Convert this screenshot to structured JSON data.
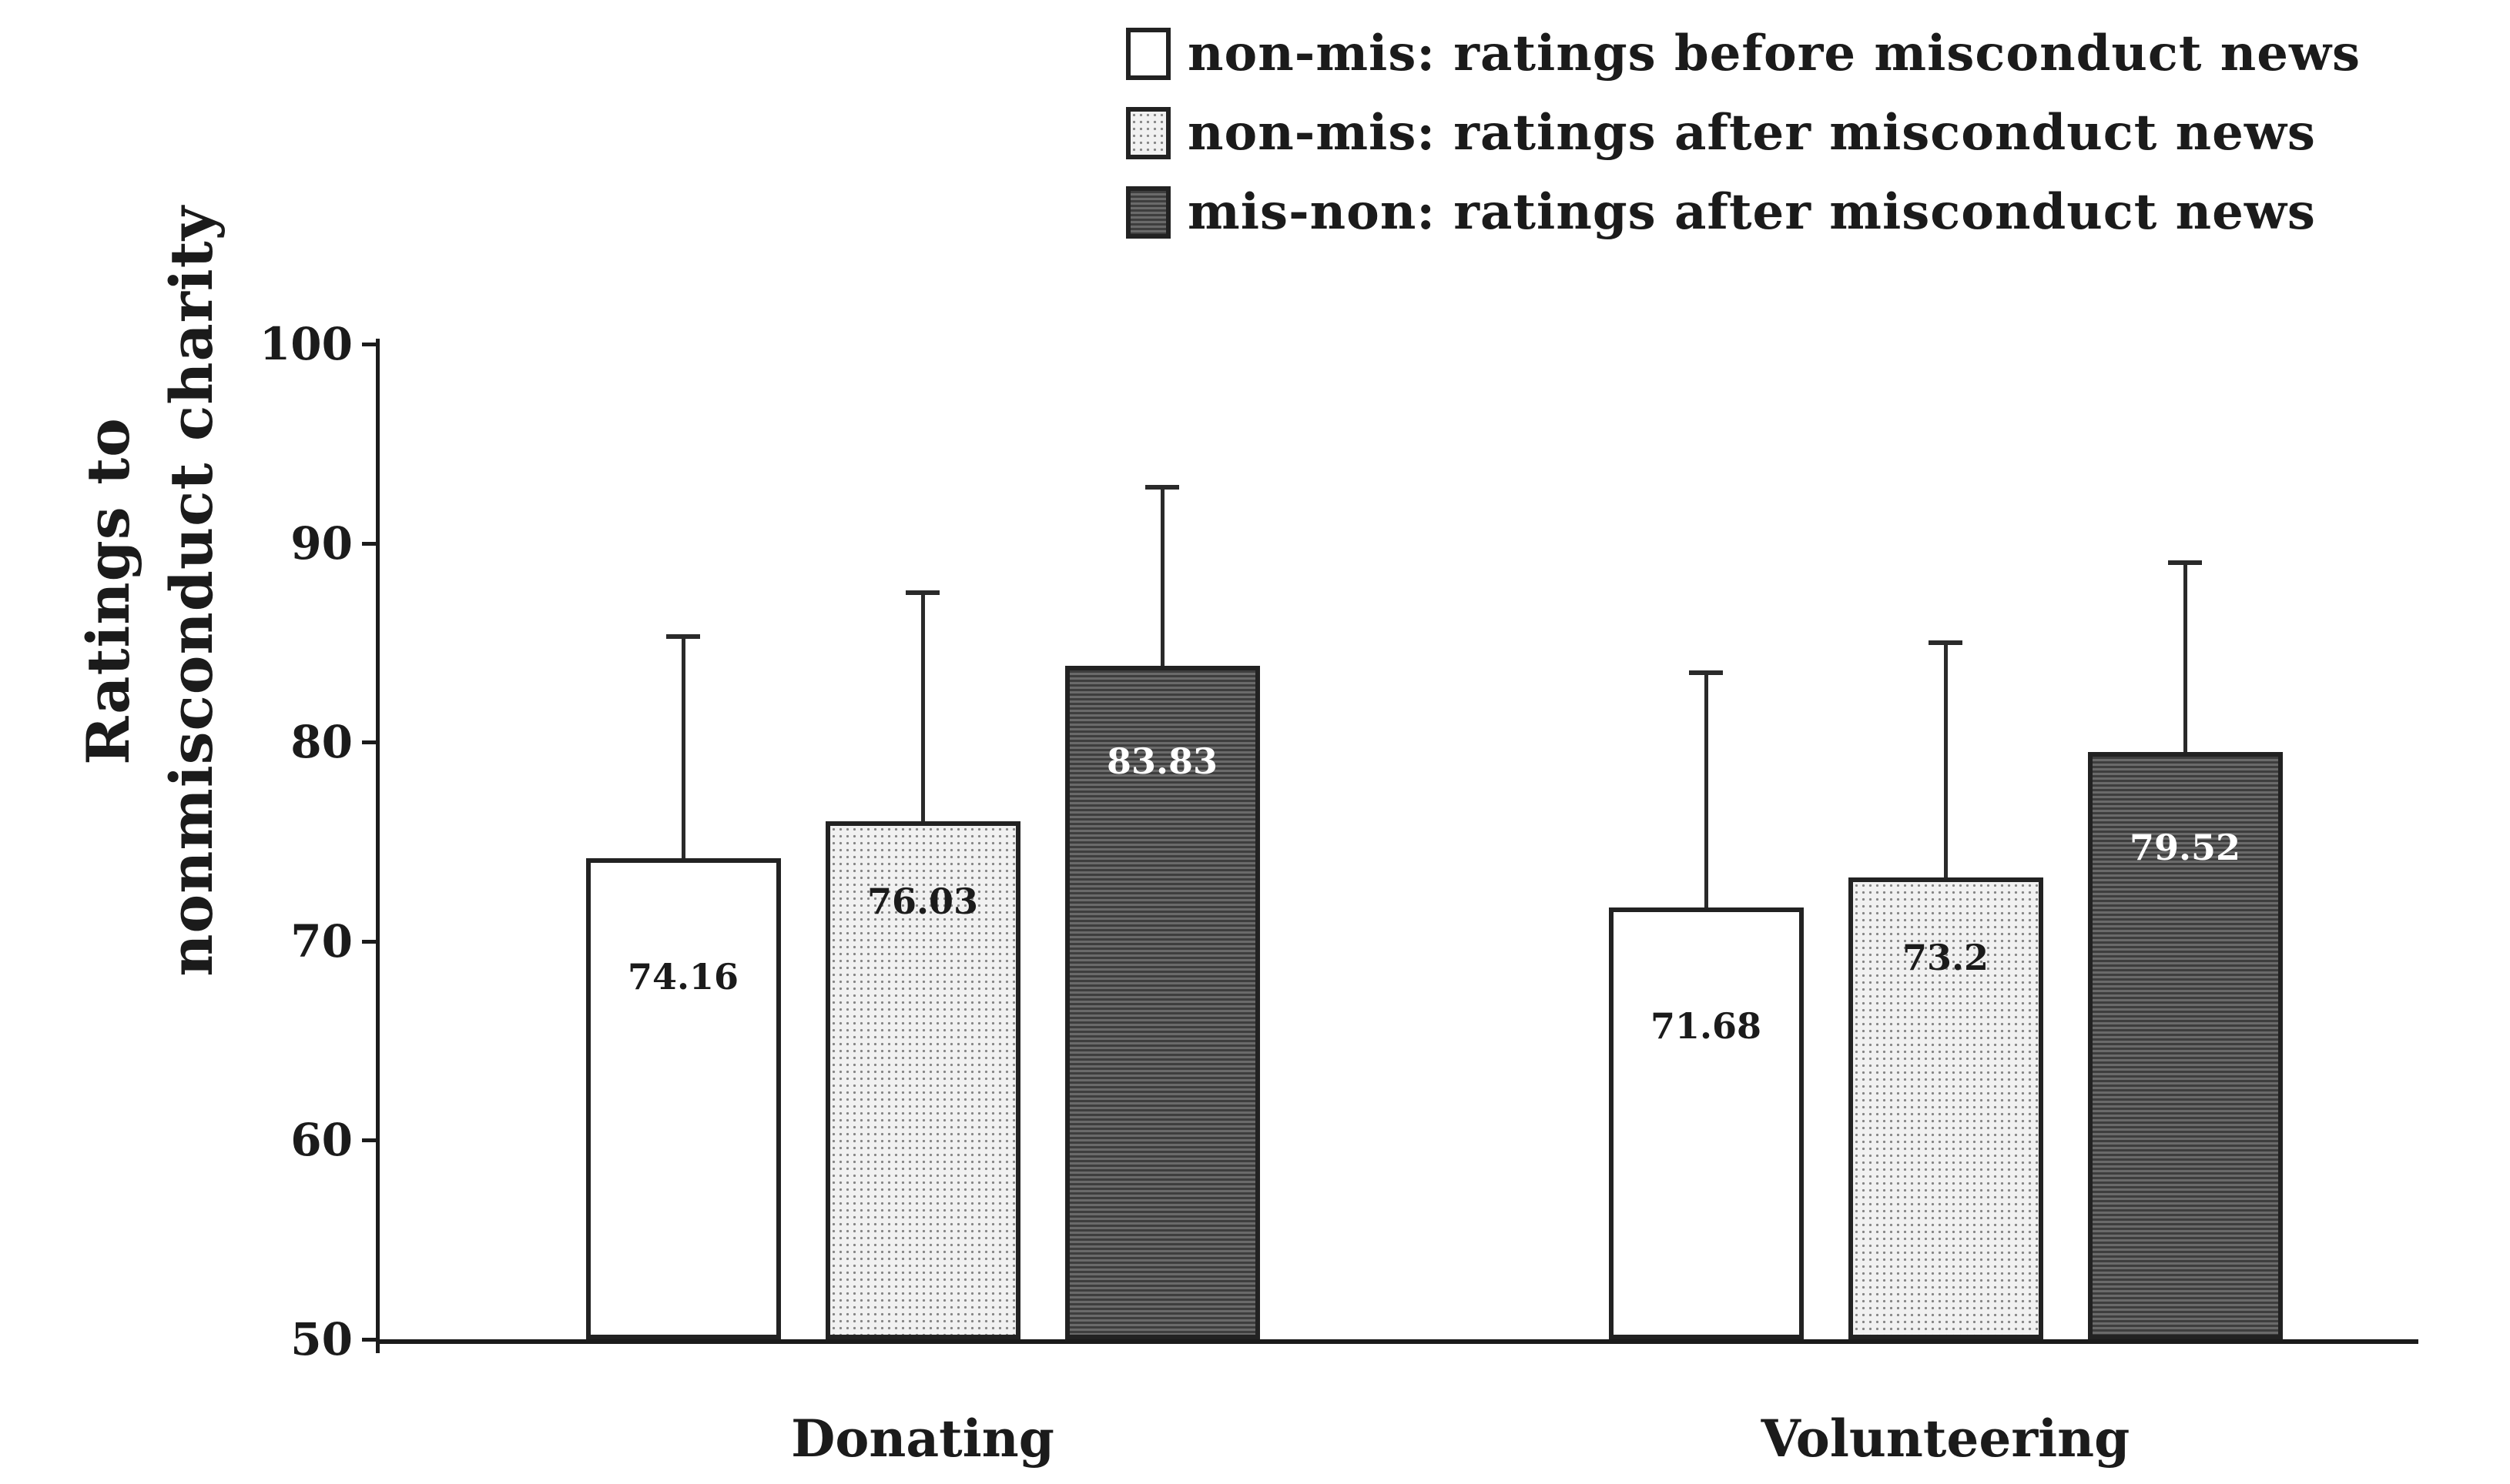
{
  "chart_data": {
    "type": "bar",
    "title": "",
    "ylabel_lines": [
      "Ratings to",
      "nonmisconduct charity"
    ],
    "xlabel": "",
    "categories": [
      "Donating",
      "Volunteering"
    ],
    "series": [
      {
        "name": "non-mis: ratings before misconduct news",
        "values": [
          74.16,
          71.68
        ],
        "value_labels": [
          "74.16",
          "71.68"
        ],
        "error_bar_tops": [
          85.3,
          83.5
        ],
        "fill": "white",
        "value_label_color": "#1b1b1b"
      },
      {
        "name": "non-mis: ratings after misconduct news",
        "values": [
          76.03,
          73.2
        ],
        "value_labels": [
          "76.03",
          "73.2"
        ],
        "error_bar_tops": [
          87.5,
          85.0
        ],
        "fill": "light-dotted",
        "value_label_color": "#1b1b1b"
      },
      {
        "name": "mis-non: ratings after misconduct news",
        "values": [
          83.83,
          79.52
        ],
        "value_labels": [
          "83.83",
          "79.52"
        ],
        "error_bar_tops": [
          92.8,
          89.0
        ],
        "fill": "dark-striped",
        "value_label_color": "#ffffff"
      }
    ],
    "yticks": [
      50,
      60,
      70,
      80,
      90,
      100
    ],
    "ylim": [
      50,
      100
    ],
    "grid": false,
    "legend_position": "top-right",
    "error_bars": "upper only"
  },
  "colors": {
    "ink": "#1b1b1b",
    "bar_border": "#222222",
    "light_fill": "#f1f1f1",
    "light_dot": "#858585",
    "dark_stripe_a": "#3e3e3e",
    "dark_stripe_b": "#6a6a6a",
    "background": "#ffffff"
  }
}
